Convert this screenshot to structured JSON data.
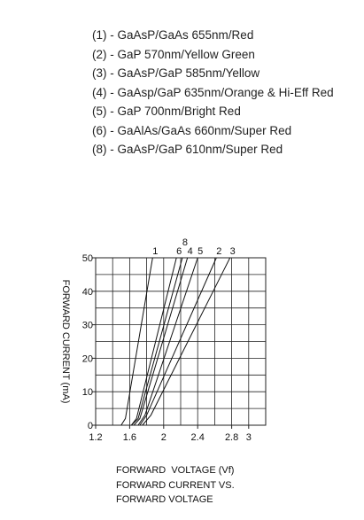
{
  "legend_lines": [
    "(1) - GaAsP/GaAs 655nm/Red",
    "(2) - GaP 570nm/Yellow Green",
    "(3) - GaAsP/GaP 585nm/Yellow",
    "(4) - GaAsp/GaP 635nm/Orange & Hi-Eff Red",
    "(5) - GaP 700nm/Bright Red",
    "(6) - GaAlAs/GaAs 660nm/Super Red",
    "(8) - GaAsP/GaP 610nm/Super Red"
  ],
  "chart_data": {
    "type": "line",
    "xlabel": "FORWARD  VOLTAGE (Vf)",
    "ylabel": "FORWARD CURRENT (mA)",
    "caption": [
      "FORWARD CURRENT VS.",
      "FORWARD VOLTAGE"
    ],
    "xlim": [
      1.2,
      3.2
    ],
    "xticks": [
      1.2,
      1.6,
      2.0,
      2.4,
      2.8,
      3.0
    ],
    "ylim": [
      0,
      50
    ],
    "yticks": [
      0,
      10,
      20,
      30,
      40,
      50
    ],
    "grid": true,
    "color": "#111111",
    "series": [
      {
        "name": "1",
        "x": [
          1.5,
          1.55,
          1.87
        ],
        "values": [
          0,
          2,
          50
        ]
      },
      {
        "name": "6",
        "x": [
          1.62,
          1.68,
          2.15
        ],
        "values": [
          0,
          2,
          50
        ]
      },
      {
        "name": "8",
        "x": [
          1.62,
          1.7,
          2.22
        ],
        "values": [
          0,
          2,
          50
        ]
      },
      {
        "name": "4",
        "x": [
          1.65,
          1.72,
          2.28
        ],
        "values": [
          0,
          2,
          50
        ]
      },
      {
        "name": "5",
        "x": [
          1.7,
          1.78,
          2.4
        ],
        "values": [
          0,
          3,
          50
        ]
      },
      {
        "name": "2",
        "x": [
          1.72,
          1.8,
          2.62
        ],
        "values": [
          0,
          3,
          50
        ]
      },
      {
        "name": "3",
        "x": [
          1.75,
          1.85,
          2.78
        ],
        "values": [
          0,
          3,
          50
        ]
      }
    ]
  }
}
